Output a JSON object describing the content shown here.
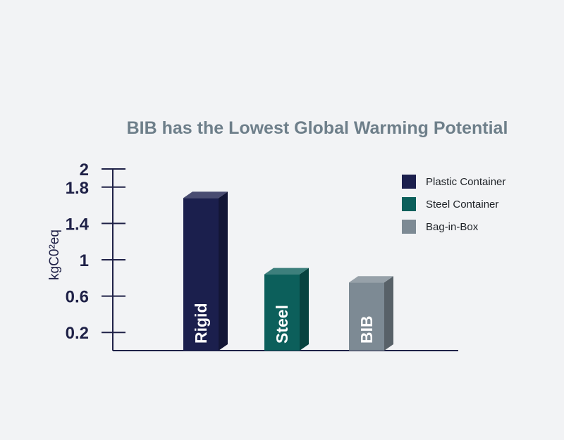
{
  "chart_data": {
    "type": "bar",
    "title": "BIB has the Lowest Global Warming Potential",
    "ylabel": "kgC0²eq",
    "xlabel": "",
    "ylim": [
      0,
      2
    ],
    "y_ticks": [
      "0.2",
      "0.6",
      "1",
      "1.4",
      "1.8",
      "2"
    ],
    "y_tick_values": [
      0.2,
      0.6,
      1.0,
      1.4,
      1.8,
      2.0
    ],
    "categories": [
      "Rigid",
      "Steel",
      "BIB"
    ],
    "values": [
      1.68,
      0.84,
      0.75
    ],
    "colors": [
      "#1b1f4d",
      "#0c5f5b",
      "#7d8a94"
    ],
    "legend": {
      "position": "top-right",
      "entries": [
        {
          "label": "Plastic Container",
          "color": "#1b1f4d"
        },
        {
          "label": "Steel Container",
          "color": "#0c5f5b"
        },
        {
          "label": "Bag-in-Box",
          "color": "#7d8a94"
        }
      ]
    },
    "title_color": "#6e7f8a",
    "axis_color": "#1f2147",
    "grid": false
  }
}
